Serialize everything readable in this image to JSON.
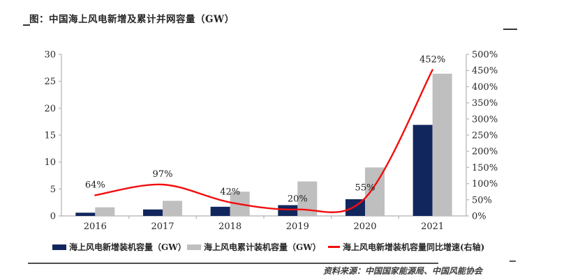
{
  "page": {
    "title": "图：中国海上风电新增及累计并网容量（GW）",
    "source": "资料来源：中国国家能源局、中国风能协会"
  },
  "colors": {
    "new_capacity_bar": "#12265e",
    "cumulative_capacity_bar": "#bfbfbf",
    "growth_line": "#f20d0d",
    "axis_line": "#bdbdbd",
    "tick_text": "#262626",
    "data_label_text": "#1a1a1a"
  },
  "chart_data": {
    "type": "bar",
    "title": "中国海上风电新增及累计并网容量（GW）",
    "categories": [
      "2016",
      "2017",
      "2018",
      "2019",
      "2020",
      "2021"
    ],
    "series": [
      {
        "name": "海上风电新增装机容量（GW）",
        "type": "bar",
        "axis": "left",
        "values": [
          0.6,
          1.2,
          1.7,
          2.0,
          3.1,
          16.9
        ]
      },
      {
        "name": "海上风电累计装机容量（GW）",
        "type": "bar",
        "axis": "left",
        "values": [
          1.6,
          2.8,
          4.5,
          6.4,
          9.0,
          26.4
        ]
      },
      {
        "name": "海上风电新增装机容量同比增速(右轴)",
        "type": "line",
        "axis": "right",
        "values": [
          64,
          97,
          42,
          20,
          55,
          452
        ],
        "point_labels": [
          "64%",
          "97%",
          "42%",
          "20%",
          "55%",
          "452%"
        ]
      }
    ],
    "left_axis": {
      "min": 0,
      "max": 30,
      "step": 5,
      "ticks": [
        "0",
        "5",
        "10",
        "15",
        "20",
        "25",
        "30"
      ]
    },
    "right_axis": {
      "min": 0,
      "max": 500,
      "step": 50,
      "ticks": [
        "0%",
        "50%",
        "100%",
        "150%",
        "200%",
        "250%",
        "300%",
        "350%",
        "400%",
        "450%",
        "500%"
      ]
    },
    "grid": false,
    "legend_position": "bottom"
  }
}
